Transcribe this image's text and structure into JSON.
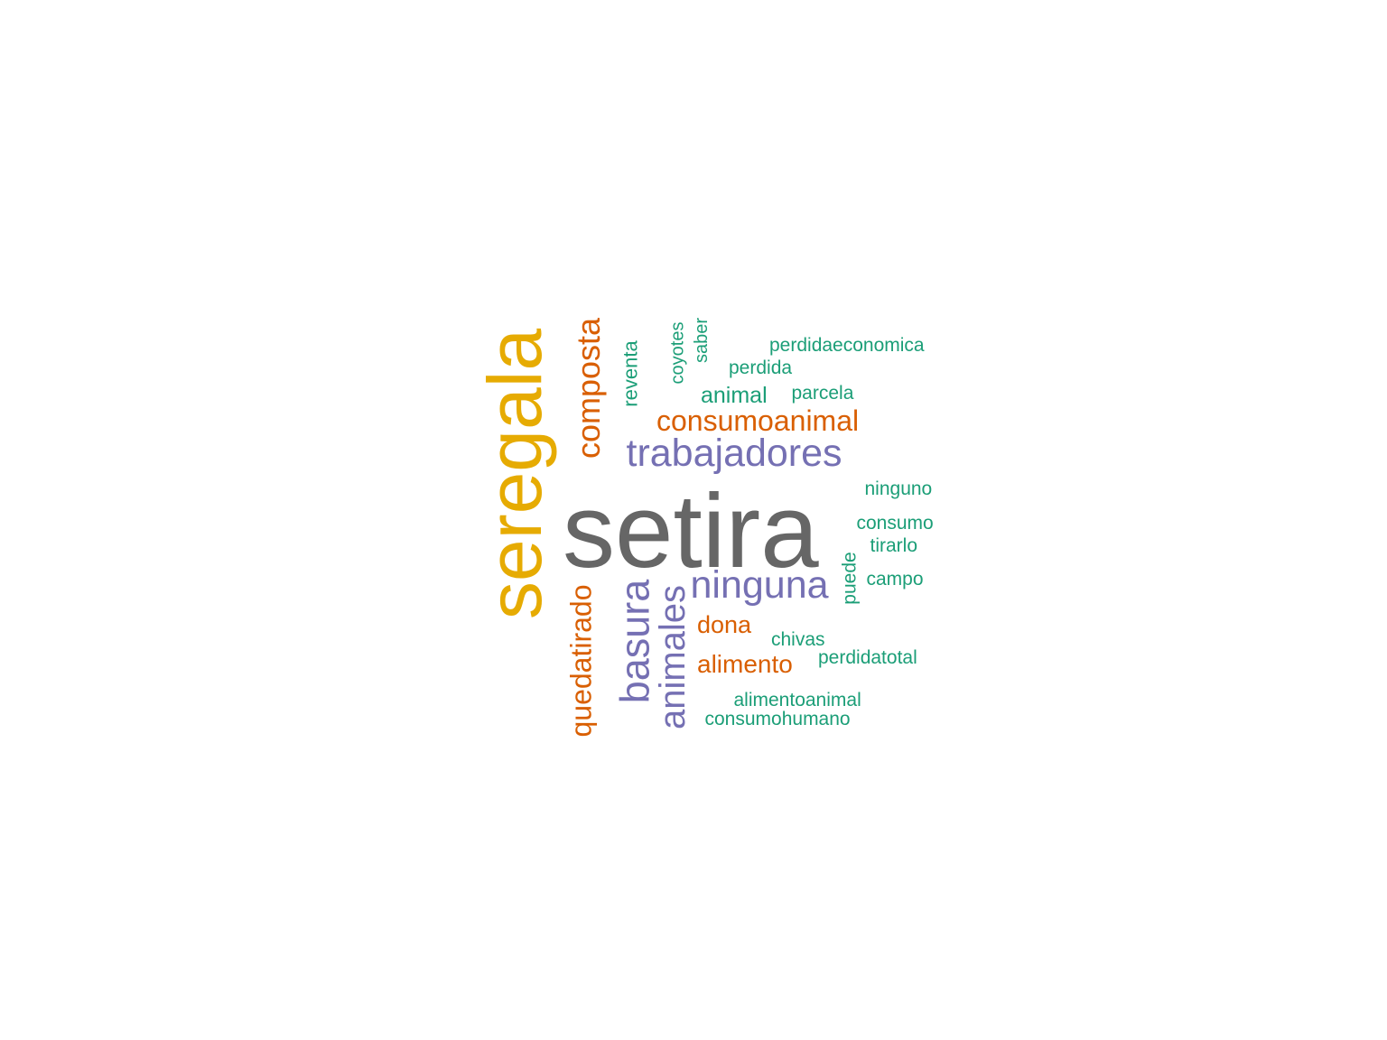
{
  "palette": {
    "gray": "#666666",
    "gold": "#E6AB02",
    "orange": "#D95F02",
    "purple": "#7570B3",
    "teal": "#1B9E77"
  },
  "words": [
    {
      "text": "setira",
      "color": "gray"
    },
    {
      "text": "seregala",
      "color": "gold"
    },
    {
      "text": "trabajadores",
      "color": "purple"
    },
    {
      "text": "ninguna",
      "color": "purple"
    },
    {
      "text": "basura",
      "color": "purple"
    },
    {
      "text": "animales",
      "color": "purple"
    },
    {
      "text": "composta",
      "color": "orange"
    },
    {
      "text": "consumoanimal",
      "color": "orange"
    },
    {
      "text": "quedatirado",
      "color": "orange"
    },
    {
      "text": "dona",
      "color": "orange"
    },
    {
      "text": "alimento",
      "color": "orange"
    },
    {
      "text": "reventa",
      "color": "teal"
    },
    {
      "text": "coyotes",
      "color": "teal"
    },
    {
      "text": "saber",
      "color": "teal"
    },
    {
      "text": "perdidaeconomica",
      "color": "teal"
    },
    {
      "text": "perdida",
      "color": "teal"
    },
    {
      "text": "animal",
      "color": "teal"
    },
    {
      "text": "parcela",
      "color": "teal"
    },
    {
      "text": "ninguno",
      "color": "teal"
    },
    {
      "text": "consumo",
      "color": "teal"
    },
    {
      "text": "tirarlo",
      "color": "teal"
    },
    {
      "text": "puede",
      "color": "teal"
    },
    {
      "text": "campo",
      "color": "teal"
    },
    {
      "text": "chivas",
      "color": "teal"
    },
    {
      "text": "perdidatotal",
      "color": "teal"
    },
    {
      "text": "alimentoanimal",
      "color": "teal"
    },
    {
      "text": "consumohumano",
      "color": "teal"
    }
  ]
}
